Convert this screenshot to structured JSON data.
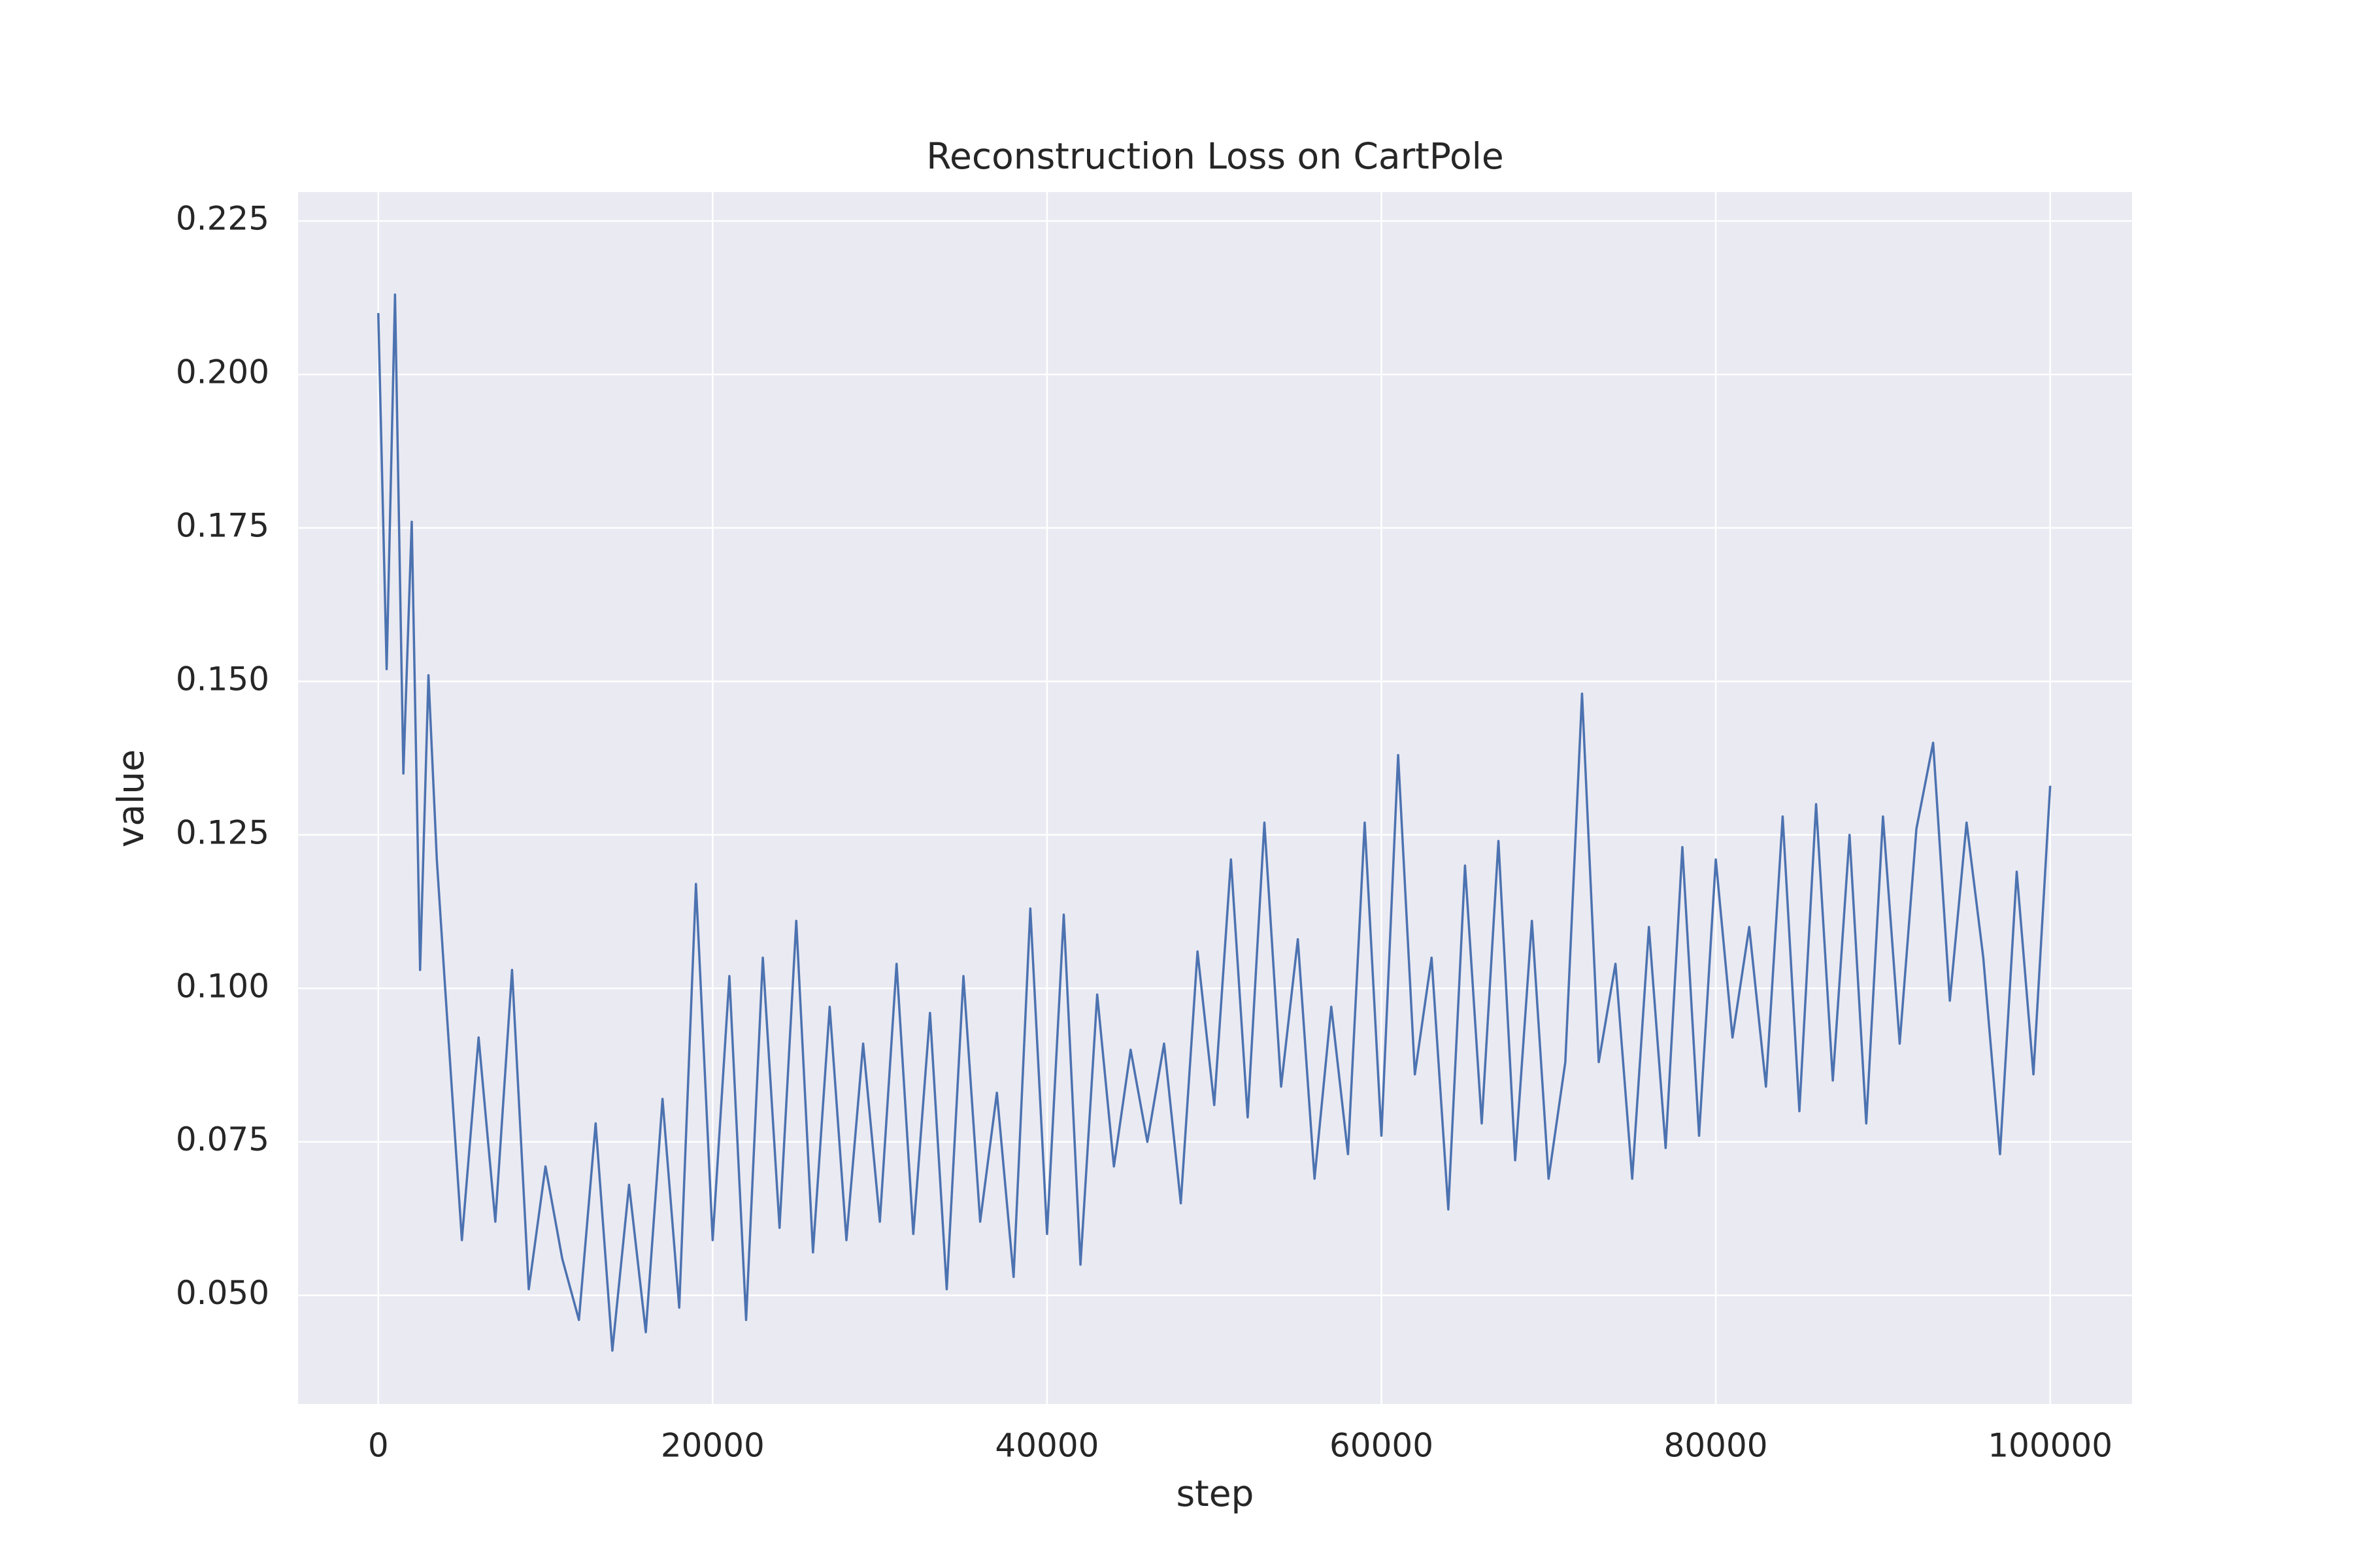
{
  "chart_data": {
    "type": "line",
    "title": "Reconstruction Loss on CartPole",
    "x_label": "step",
    "y_label": "value",
    "x": [
      0,
      500,
      1000,
      1500,
      2000,
      2500,
      3000,
      3500,
      4000,
      5000,
      6000,
      7000,
      8000,
      9000,
      10000,
      11000,
      12000,
      13000,
      14000,
      15000,
      16000,
      17000,
      18000,
      19000,
      20000,
      21000,
      22000,
      23000,
      24000,
      25000,
      26000,
      27000,
      28000,
      29000,
      30000,
      31000,
      32000,
      33000,
      34000,
      35000,
      36000,
      37000,
      38000,
      39000,
      40000,
      41000,
      42000,
      43000,
      44000,
      45000,
      46000,
      47000,
      48000,
      49000,
      50000,
      51000,
      52000,
      53000,
      54000,
      55000,
      56000,
      57000,
      58000,
      59000,
      60000,
      61000,
      62000,
      63000,
      64000,
      65000,
      66000,
      67000,
      68000,
      69000,
      70000,
      71000,
      72000,
      73000,
      74000,
      75000,
      76000,
      77000,
      78000,
      79000,
      80000,
      81000,
      82000,
      83000,
      84000,
      85000,
      86000,
      87000,
      88000,
      89000,
      90000,
      91000,
      92000,
      93000,
      94000,
      95000,
      96000,
      97000,
      98000,
      99000,
      100000
    ],
    "series": [
      {
        "name": "value",
        "color": "#4c72b0",
        "values": [
          0.21,
          0.152,
          0.213,
          0.135,
          0.176,
          0.103,
          0.151,
          0.121,
          0.1,
          0.059,
          0.092,
          0.062,
          0.103,
          0.051,
          0.071,
          0.056,
          0.046,
          0.078,
          0.041,
          0.068,
          0.044,
          0.082,
          0.048,
          0.117,
          0.059,
          0.102,
          0.046,
          0.105,
          0.061,
          0.111,
          0.057,
          0.097,
          0.059,
          0.091,
          0.062,
          0.104,
          0.06,
          0.096,
          0.051,
          0.102,
          0.062,
          0.083,
          0.053,
          0.113,
          0.06,
          0.112,
          0.055,
          0.099,
          0.071,
          0.09,
          0.075,
          0.091,
          0.065,
          0.106,
          0.081,
          0.121,
          0.079,
          0.127,
          0.084,
          0.108,
          0.069,
          0.097,
          0.073,
          0.127,
          0.076,
          0.138,
          0.086,
          0.105,
          0.064,
          0.12,
          0.078,
          0.124,
          0.072,
          0.111,
          0.069,
          0.088,
          0.148,
          0.088,
          0.104,
          0.069,
          0.11,
          0.074,
          0.123,
          0.076,
          0.121,
          0.092,
          0.11,
          0.084,
          0.128,
          0.08,
          0.13,
          0.085,
          0.125,
          0.078,
          0.128,
          0.091,
          0.126,
          0.14,
          0.098,
          0.127,
          0.105,
          0.073,
          0.119,
          0.086,
          0.133
        ]
      }
    ],
    "xlim": [
      -4800,
      104900
    ],
    "ylim": [
      0.0323,
      0.2297
    ],
    "xticks": [
      0,
      20000,
      40000,
      60000,
      80000,
      100000
    ],
    "yticks": [
      {
        "value": 0.05,
        "label": "0.050"
      },
      0.075,
      {
        "value": 0.1,
        "label": "0.100"
      },
      0.125,
      {
        "value": 0.15,
        "label": "0.150"
      },
      0.175,
      {
        "value": 0.2,
        "label": "0.200"
      },
      0.225
    ],
    "grid": true,
    "background": "#eaeaf2"
  }
}
